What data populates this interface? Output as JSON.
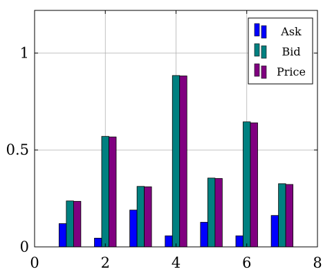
{
  "chart_data": {
    "type": "bar",
    "x": [
      1,
      2,
      3,
      4,
      5,
      6,
      7
    ],
    "series": [
      {
        "name": "Ask",
        "color": "#0000ff",
        "values": [
          0.12,
          0.045,
          0.19,
          0.057,
          0.127,
          0.057,
          0.162
        ]
      },
      {
        "name": "Bid",
        "color": "#008080",
        "values": [
          0.237,
          0.57,
          0.312,
          0.884,
          0.355,
          0.645,
          0.326
        ]
      },
      {
        "name": "Price",
        "color": "#800080",
        "values": [
          0.235,
          0.567,
          0.31,
          0.882,
          0.353,
          0.64,
          0.322
        ]
      }
    ],
    "xlim": [
      0,
      8
    ],
    "ylim": [
      0,
      1.22
    ],
    "xticks": [
      0,
      2,
      4,
      6,
      8
    ],
    "yticks": [
      0,
      0.5,
      1
    ],
    "xtick_labels": [
      "0",
      "2",
      "4",
      "6",
      "8"
    ],
    "ytick_labels": [
      "0",
      "0.5",
      "1"
    ],
    "grid": true,
    "legend_position": "top-right",
    "title": "",
    "xlabel": "",
    "ylabel": ""
  }
}
